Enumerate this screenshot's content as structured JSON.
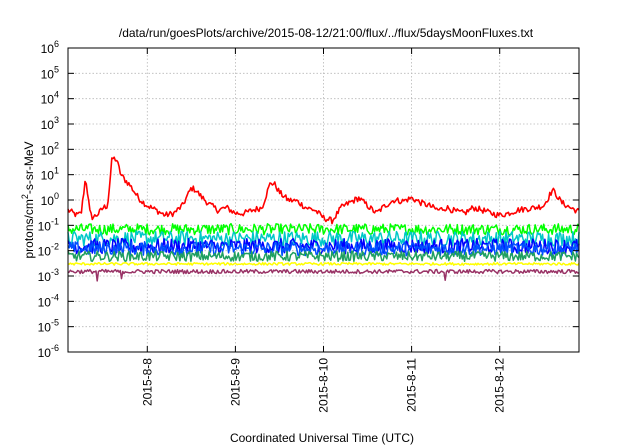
{
  "chart_data": {
    "type": "line",
    "title": "/data/run/goesPlots/archive/2015-08-12/21:00/flux/../flux/5daysMoonFluxes.txt",
    "xlabel": "Coordinated Universal Time (UTC)",
    "ylabel_parts": {
      "pre": "protons/cm",
      "sup": "2",
      "post": "-s-sr-MeV"
    },
    "yscale": "log",
    "ylim": [
      1e-06,
      1000000.0
    ],
    "xlim": [
      7.1,
      12.9
    ],
    "grid": true,
    "x_ticks": [
      {
        "x": 8,
        "label": "2015-8-8"
      },
      {
        "x": 9,
        "label": "2015-8-9"
      },
      {
        "x": 10,
        "label": "2015-8-10"
      },
      {
        "x": 11,
        "label": "2015-8-11"
      },
      {
        "x": 12,
        "label": "2015-8-12"
      }
    ],
    "y_ticks": [
      {
        "exp": 6,
        "base": "10",
        "sup": "6"
      },
      {
        "exp": 5,
        "base": "10",
        "sup": "5"
      },
      {
        "exp": 4,
        "base": "10",
        "sup": "4"
      },
      {
        "exp": 3,
        "base": "10",
        "sup": "3"
      },
      {
        "exp": 2,
        "base": "10",
        "sup": "2"
      },
      {
        "exp": 1,
        "base": "10",
        "sup": "1"
      },
      {
        "exp": 0,
        "base": "10",
        "sup": "0"
      },
      {
        "exp": -1,
        "base": "10",
        "sup": "-1"
      },
      {
        "exp": -2,
        "base": "10",
        "sup": "-2"
      },
      {
        "exp": -3,
        "base": "10",
        "sup": "-3"
      },
      {
        "exp": -4,
        "base": "10",
        "sup": "-4"
      },
      {
        "exp": -5,
        "base": "10",
        "sup": "-5"
      },
      {
        "exp": -6,
        "base": "10",
        "sup": "-6"
      }
    ],
    "series": [
      {
        "color": "#ff0000",
        "noise": 0.12,
        "x": [
          7.1,
          7.2,
          7.25,
          7.3,
          7.35,
          7.38,
          7.45,
          7.5,
          7.55,
          7.6,
          7.65,
          7.7,
          7.75,
          7.8,
          7.9,
          8.0,
          8.1,
          8.2,
          8.3,
          8.4,
          8.5,
          8.55,
          8.6,
          8.7,
          8.8,
          8.9,
          9.0,
          9.1,
          9.2,
          9.3,
          9.4,
          9.45,
          9.5,
          9.6,
          9.7,
          9.8,
          9.9,
          10.0,
          10.1,
          10.2,
          10.3,
          10.4,
          10.5,
          10.6,
          10.7,
          10.8,
          10.9,
          11.0,
          11.1,
          11.2,
          11.3,
          11.4,
          11.5,
          11.6,
          11.7,
          11.8,
          11.9,
          12.0,
          12.1,
          12.2,
          12.3,
          12.4,
          12.5,
          12.6,
          12.65,
          12.7,
          12.8,
          12.9
        ],
        "y": [
          0.4,
          0.25,
          0.3,
          8,
          0.3,
          0.2,
          0.3,
          0.5,
          0.6,
          45,
          40,
          10,
          6,
          4,
          1.2,
          0.6,
          0.4,
          0.25,
          0.3,
          0.6,
          3,
          2.5,
          1.5,
          0.7,
          0.4,
          0.5,
          0.3,
          0.3,
          0.4,
          0.5,
          5,
          4,
          2,
          1,
          0.9,
          0.5,
          0.4,
          0.2,
          0.15,
          0.5,
          0.8,
          1.2,
          0.6,
          0.3,
          0.6,
          1.0,
          0.9,
          1.2,
          0.8,
          0.6,
          0.4,
          0.5,
          0.35,
          0.3,
          0.5,
          0.4,
          0.3,
          0.25,
          0.3,
          0.4,
          0.45,
          0.5,
          0.6,
          2.5,
          1.5,
          0.8,
          0.5,
          0.35
        ]
      },
      {
        "color": "#00ff00",
        "base": 0.07,
        "noise": 0.22
      },
      {
        "color": "#00c8c8",
        "base": 0.03,
        "noise": 0.3
      },
      {
        "color": "#0000ff",
        "base": 0.015,
        "noise": 0.3
      },
      {
        "color": "#0050ff",
        "base": 0.012,
        "noise": 0.28
      },
      {
        "color": "#20a060",
        "base": 0.006,
        "noise": 0.2
      },
      {
        "color": "#ffff00",
        "base": 0.003,
        "noise": 0.05
      },
      {
        "color": "#993366",
        "base": 0.0015,
        "noise": 0.08
      }
    ]
  }
}
